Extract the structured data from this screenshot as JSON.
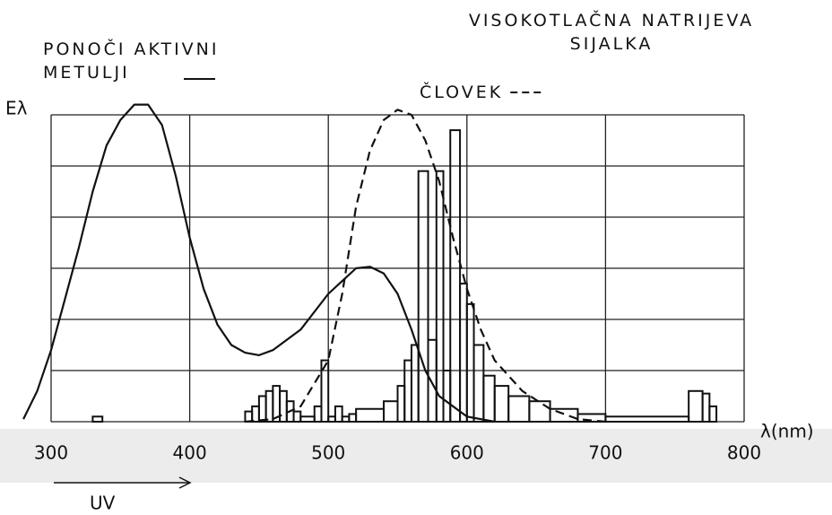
{
  "chart_data": {
    "type": "line",
    "xlabel": "λ(nm)",
    "ylabel": "Eλ",
    "xlim": [
      300,
      800
    ],
    "xticks": [
      300,
      400,
      500,
      600,
      700,
      800
    ],
    "ylim": [
      0,
      6
    ],
    "yticks": [
      0,
      1,
      2,
      3,
      4,
      5,
      6
    ],
    "grid": true,
    "series": [
      {
        "name": "PONOČI AKTIVNI METULJI",
        "color": "#111111",
        "dash": false,
        "x": [
          280,
          290,
          300,
          310,
          320,
          330,
          340,
          350,
          360,
          370,
          380,
          390,
          400,
          410,
          420,
          430,
          440,
          450,
          460,
          480,
          500,
          520,
          530,
          540,
          550,
          560,
          570,
          580,
          600,
          620
        ],
        "values": [
          0.05,
          0.6,
          1.4,
          2.4,
          3.4,
          4.5,
          5.4,
          5.9,
          6.2,
          6.2,
          5.8,
          4.8,
          3.6,
          2.6,
          1.9,
          1.5,
          1.35,
          1.3,
          1.4,
          1.8,
          2.5,
          3.0,
          3.03,
          2.9,
          2.5,
          1.8,
          1.0,
          0.5,
          0.1,
          0
        ]
      },
      {
        "name": "ČLOVEK",
        "color": "#111111",
        "dash": true,
        "x": [
          440,
          460,
          480,
          500,
          510,
          520,
          530,
          540,
          550,
          560,
          570,
          580,
          590,
          600,
          610,
          620,
          640,
          660,
          680,
          700
        ],
        "values": [
          0,
          0.05,
          0.3,
          1.2,
          2.5,
          4.2,
          5.3,
          5.9,
          6.1,
          6.0,
          5.5,
          4.7,
          3.6,
          2.6,
          1.8,
          1.2,
          0.6,
          0.25,
          0.05,
          0
        ]
      }
    ],
    "histogram": {
      "name": "VISOKOTLAČNA NATRIJEVA SIJALKA",
      "color": "#111111",
      "bins": [
        330,
        337,
        440,
        445,
        450,
        455,
        460,
        465,
        470,
        475,
        480,
        490,
        495,
        500,
        505,
        510,
        515,
        520,
        540,
        550,
        555,
        560,
        565,
        572,
        578,
        583,
        588,
        595,
        600,
        605,
        612,
        620,
        630,
        645,
        660,
        680,
        700,
        760,
        770,
        775,
        780
      ],
      "counts": [
        0.1,
        0,
        0.2,
        0.3,
        0.5,
        0.6,
        0.7,
        0.6,
        0.4,
        0.2,
        0.1,
        0.3,
        1.2,
        0.1,
        0.3,
        0.1,
        0.15,
        0.25,
        0.4,
        0.7,
        1.2,
        1.5,
        4.9,
        1.6,
        4.9,
        1.0,
        5.7,
        2.7,
        2.3,
        1.5,
        0.9,
        0.7,
        0.5,
        0.4,
        0.25,
        0.15,
        0.1,
        0.6,
        0.55,
        0.3
      ]
    },
    "annotations": [
      "UV"
    ]
  }
}
